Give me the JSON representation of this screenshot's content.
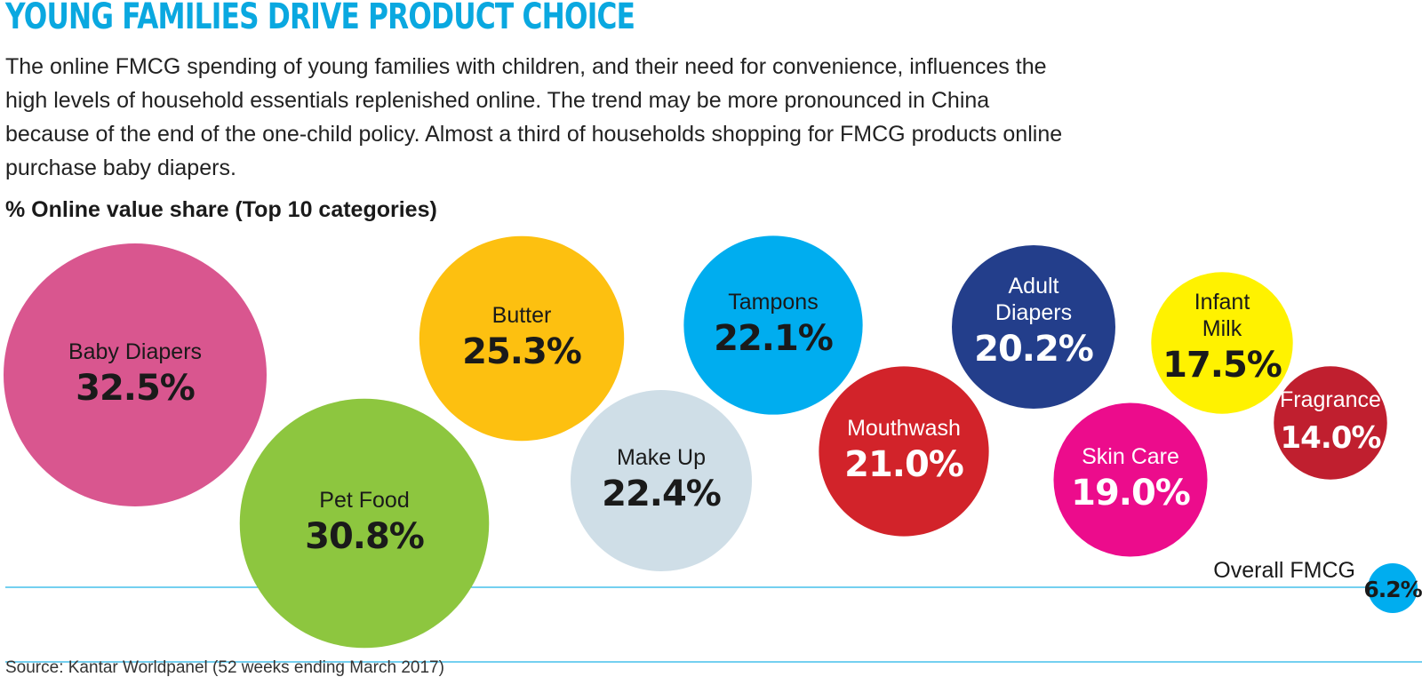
{
  "title": "YOUNG FAMILIES DRIVE PRODUCT CHOICE",
  "intro": "The online FMCG spending of young families with children, and their need for convenience, influences the high levels of household essentials replenished online. The trend may be more pronounced in China because of the end of the one-child policy. Almost a third of households shopping for FMCG products online purchase baby diapers.",
  "source": "Source: Kantar Worldpanel (52 weeks ending March 2017)",
  "chart_data": {
    "type": "bubble",
    "title": "% Online value share (Top 10 categories)",
    "unit": "%",
    "series": [
      {
        "name": "Baby Diapers",
        "lines": [
          "Baby Diapers"
        ],
        "value": 32.5,
        "label": "32.5%",
        "color": "#d9568f",
        "text_color": "#1a1a1a"
      },
      {
        "name": "Pet Food",
        "lines": [
          "Pet Food"
        ],
        "value": 30.8,
        "label": "30.8%",
        "color": "#8dc63f",
        "text_color": "#1a1a1a"
      },
      {
        "name": "Butter",
        "lines": [
          "Butter"
        ],
        "value": 25.3,
        "label": "25.3%",
        "color": "#fdc010",
        "text_color": "#1a1a1a"
      },
      {
        "name": "Make Up",
        "lines": [
          "Make Up"
        ],
        "value": 22.4,
        "label": "22.4%",
        "color": "#cfdee7",
        "text_color": "#1a1a1a"
      },
      {
        "name": "Tampons",
        "lines": [
          "Tampons"
        ],
        "value": 22.1,
        "label": "22.1%",
        "color": "#00adef",
        "text_color": "#1a1a1a"
      },
      {
        "name": "Mouthwash",
        "lines": [
          "Mouthwash"
        ],
        "value": 21.0,
        "label": "21.0%",
        "color": "#d2232a",
        "text_color": "#ffffff"
      },
      {
        "name": "Adult Diapers",
        "lines": [
          "Adult",
          "Diapers"
        ],
        "value": 20.2,
        "label": "20.2%",
        "color": "#233e8b",
        "text_color": "#ffffff"
      },
      {
        "name": "Skin Care",
        "lines": [
          "Skin Care"
        ],
        "value": 19.0,
        "label": "19.0%",
        "color": "#ec0c8c",
        "text_color": "#ffffff"
      },
      {
        "name": "Infant Milk",
        "lines": [
          "Infant",
          "Milk"
        ],
        "value": 17.5,
        "label": "17.5%",
        "color": "#fff200",
        "text_color": "#1a1a1a"
      },
      {
        "name": "Fragrance",
        "lines": [
          "Fragrance"
        ],
        "value": 14.0,
        "label": "14.0%",
        "color": "#c01f2f",
        "text_color": "#ffffff"
      }
    ],
    "reference": {
      "name": "Overall FMCG",
      "value": 6.2,
      "label": "6.2%",
      "color": "#00adef",
      "text_color": "#1a1a1a"
    }
  }
}
